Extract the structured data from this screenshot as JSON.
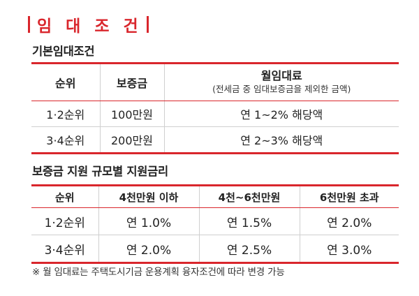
{
  "title": "임 대 조 건",
  "section1": {
    "title": "기본임대조건",
    "headers": {
      "rank": "순위",
      "deposit": "보증금",
      "rent": "월임대료",
      "rent_note": "(전세금 중 임대보증금을 제외한 금액)"
    },
    "rows": [
      {
        "rank": "1·2순위",
        "deposit": "100만원",
        "rent": "연 1~2% 해당액"
      },
      {
        "rank": "3·4순위",
        "deposit": "200만원",
        "rent": "연 2~3% 해당액"
      }
    ]
  },
  "section2": {
    "title": "보증금 지원 규모별 지원금리",
    "headers": [
      "순위",
      "4천만원 이하",
      "4천~6천만원",
      "6천만원 초과"
    ],
    "rows": [
      [
        "1·2순위",
        "연 1.0%",
        "연 1.5%",
        "연 2.0%"
      ],
      [
        "3·4순위",
        "연 2.0%",
        "연 2.5%",
        "연 3.0%"
      ]
    ]
  },
  "footnote": "※ 월 임대료는 주택도시기금 운용계획 융자조건에 따라 변경 가능",
  "colors": {
    "accent": "#d9262c",
    "text": "#222222",
    "divider": "#cfcfcf"
  }
}
